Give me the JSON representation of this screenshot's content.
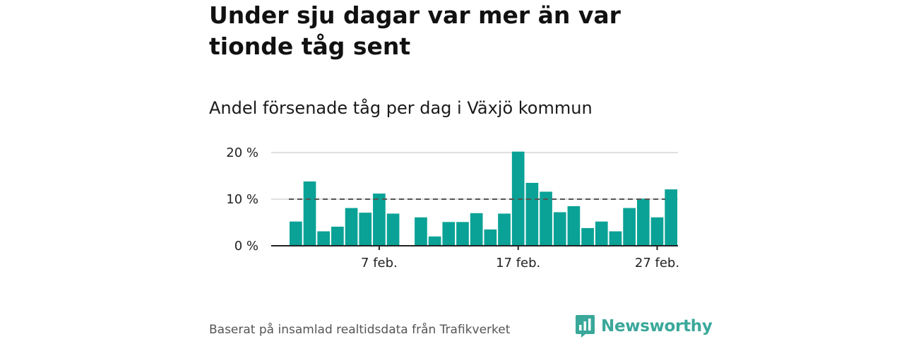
{
  "title": "Under sju dagar var mer än var tionde tåg sent",
  "subtitle": "Andel försenade tåg per dag i Växjö kommun",
  "footer": "Baserat på insamlad realtidsdata från Trafikverket",
  "brand": {
    "name": "Newsworthy",
    "icon": "newsworthy-logo-icon",
    "color": "#3aa89a"
  },
  "colors": {
    "bar": "#0aa296",
    "reference": "#555555",
    "grid": "#d6d6d6",
    "axis": "#222222"
  },
  "chart_data": {
    "type": "bar",
    "x_start": "2024-02-01",
    "days": 28,
    "values": [
      5.2,
      13.8,
      3.1,
      4.1,
      8.1,
      7.1,
      11.2,
      6.9,
      null,
      6.1,
      2.0,
      5.1,
      5.1,
      7.0,
      3.5,
      6.9,
      20.2,
      13.5,
      11.6,
      7.2,
      8.5,
      3.8,
      5.2,
      3.1,
      8.1,
      10.1,
      6.1,
      12.1
    ],
    "reference_line": 10,
    "reference_style": "dashed",
    "ylim": [
      0,
      20
    ],
    "y_ticks": [
      {
        "value": 0,
        "label": "0 %"
      },
      {
        "value": 10,
        "label": "10 %"
      },
      {
        "value": 20,
        "label": "20 %"
      }
    ],
    "x_ticks": [
      {
        "day": 7,
        "label": "7 feb."
      },
      {
        "day": 17,
        "label": "17 feb."
      },
      {
        "day": 27,
        "label": "27 feb."
      }
    ],
    "grid": true,
    "legend": false
  }
}
